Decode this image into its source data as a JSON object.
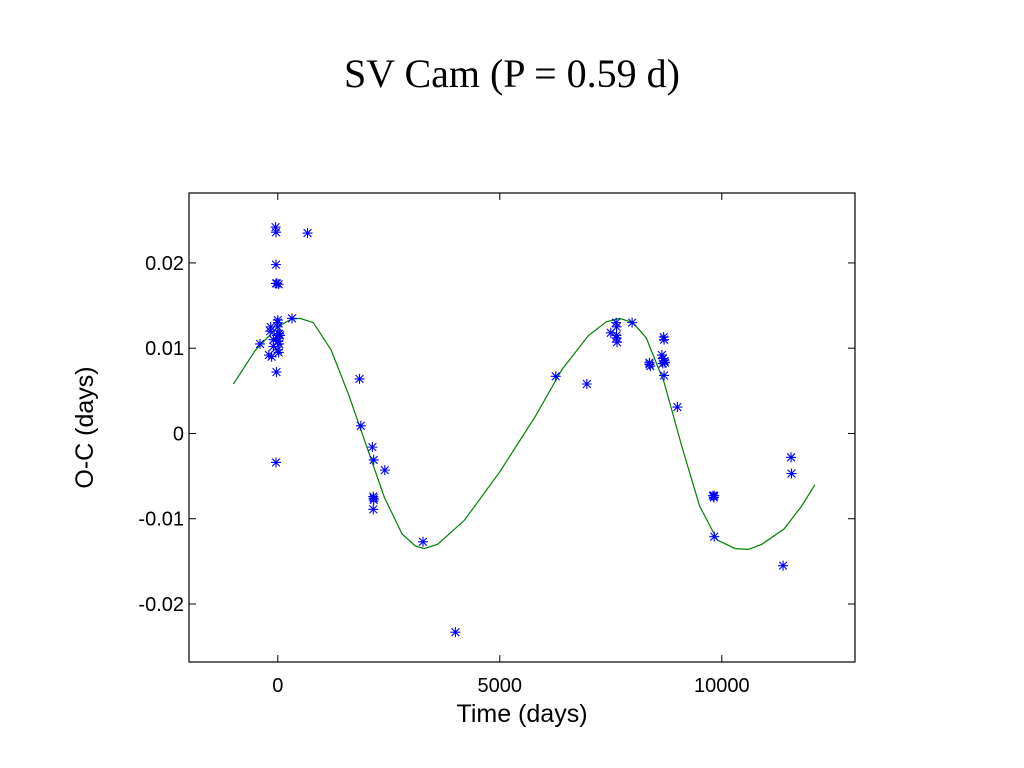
{
  "slide": {
    "title": "SV Cam (P = 0.59 d)"
  },
  "colors": {
    "points": "#0000ff",
    "fit": "#008000",
    "axes": "#000000"
  },
  "chart_data": {
    "type": "scatter",
    "xlabel": "Time (days)",
    "ylabel": "O-C (days)",
    "xlim": [
      -2000,
      13000
    ],
    "ylim": [
      -0.0268,
      0.0282
    ],
    "xticks": [
      0,
      5000,
      10000
    ],
    "xtick_labels": [
      "0",
      "5000",
      "10000"
    ],
    "yticks": [
      0.02,
      0.01,
      0,
      -0.01,
      -0.02
    ],
    "ytick_labels": [
      "0.02",
      "0.01",
      "0",
      "-0.01",
      "-0.02"
    ],
    "grid": false,
    "series": [
      {
        "kind": "points",
        "marker": "asterisk",
        "x": [
          -50,
          -40,
          -40,
          -40,
          -20,
          20,
          0,
          0,
          0,
          -20,
          30,
          0,
          0,
          30,
          50,
          -160,
          -170,
          -100,
          320,
          -400,
          -200,
          -140,
          -100,
          0,
          20,
          -30,
          50,
          -40,
          10,
          670,
          1840,
          1870,
          2130,
          2160,
          2150,
          2160,
          2160,
          2150,
          2410,
          3270,
          4000,
          6260,
          6960,
          7500,
          7620,
          7630,
          7630,
          7630,
          7640,
          7980,
          8370,
          8370,
          8390,
          8650,
          8670,
          8680,
          8690,
          8700,
          8710,
          8720,
          8700,
          9000,
          9800,
          9820,
          9830,
          9830,
          11380,
          11560,
          11570
        ],
        "y": [
          0.0242,
          0.0236,
          0.0198,
          0.0176,
          0.0176,
          0.0175,
          0.0133,
          0.013,
          0.0125,
          0.0115,
          0.0117,
          0.0112,
          0.0108,
          0.0105,
          0.0115,
          0.0125,
          0.012,
          0.011,
          0.0135,
          0.0105,
          0.0092,
          0.009,
          0.0102,
          0.0098,
          0.0095,
          0.0072,
          0.0115,
          -0.0034,
          0.0108,
          0.0235,
          0.0064,
          0.0009,
          -0.0016,
          -0.0031,
          -0.0074,
          -0.0076,
          -0.0078,
          -0.0089,
          -0.0043,
          -0.0127,
          -0.0233,
          0.0067,
          0.0058,
          0.0118,
          0.013,
          0.0125,
          0.0115,
          0.0112,
          0.0107,
          0.013,
          0.0083,
          0.0081,
          0.0079,
          0.0092,
          0.0082,
          0.0088,
          0.0113,
          0.011,
          0.0085,
          0.0083,
          0.0068,
          0.0031,
          -0.0073,
          -0.0075,
          -0.0073,
          -0.0121,
          -0.0155,
          -0.0028,
          -0.0047
        ]
      },
      {
        "kind": "line",
        "x": [
          -1000,
          -500,
          0,
          300,
          500,
          800,
          1200,
          1600,
          2000,
          2400,
          2800,
          3100,
          3300,
          3600,
          4200,
          5000,
          5800,
          6400,
          7000,
          7400,
          7700,
          8000,
          8300,
          8700,
          9100,
          9500,
          9900,
          10300,
          10600,
          10900,
          11400,
          11800,
          12100
        ],
        "y": [
          0.0058,
          0.0098,
          0.0125,
          0.0134,
          0.0135,
          0.013,
          0.0098,
          0.0045,
          -0.0015,
          -0.0075,
          -0.0118,
          -0.0132,
          -0.0135,
          -0.013,
          -0.0102,
          -0.0045,
          0.002,
          0.0075,
          0.0115,
          0.0131,
          0.0135,
          0.013,
          0.0112,
          0.006,
          -0.0015,
          -0.0085,
          -0.0125,
          -0.0135,
          -0.0136,
          -0.013,
          -0.0112,
          -0.0085,
          -0.006
        ]
      }
    ]
  }
}
